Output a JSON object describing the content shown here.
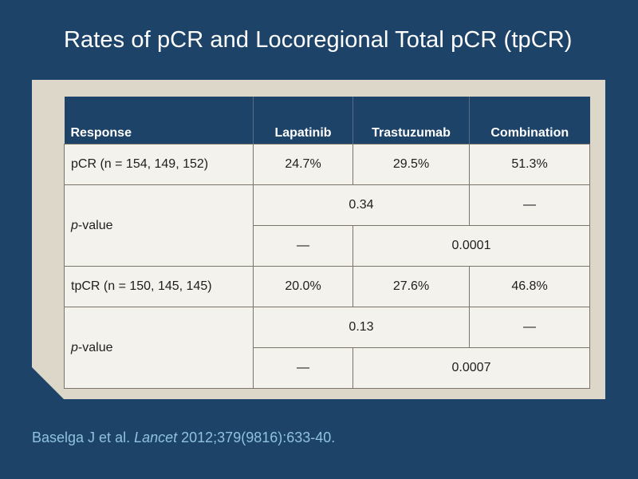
{
  "slide": {
    "title": "Rates of pCR and Locoregional Total pCR (tpCR)"
  },
  "table": {
    "headers": [
      "Response",
      "Lapatinib",
      "Trastuzumab",
      "Combination"
    ],
    "pcr_row": {
      "label": "pCR (n = 154, 149, 152)",
      "values": [
        "24.7%",
        "29.5%",
        "51.3%"
      ]
    },
    "pcr_pvalue": {
      "label_italic": "p",
      "label_rest": "-value",
      "row1": {
        "lap_vs_tras": "0.34",
        "combination": "—"
      },
      "row2": {
        "lapatinib": "—",
        "tras_vs_comb": "0.0001"
      }
    },
    "tpcr_row": {
      "label": "tpCR (n = 150, 145, 145)",
      "values": [
        "20.0%",
        "27.6%",
        "46.8%"
      ]
    },
    "tpcr_pvalue": {
      "label_italic": "p",
      "label_rest": "-value",
      "row1": {
        "lap_vs_tras": "0.13",
        "combination": "—"
      },
      "row2": {
        "lapatinib": "—",
        "tras_vs_comb": "0.0007"
      }
    }
  },
  "citation": {
    "authors": "Baselga J et al. ",
    "journal": "Lancet",
    "details": " 2012;379(9816):633-40."
  },
  "colors": {
    "background": "#1d4369",
    "card": "#dcd7c8",
    "cell": "#f4f2ec",
    "citation": "#8fc2dc"
  }
}
